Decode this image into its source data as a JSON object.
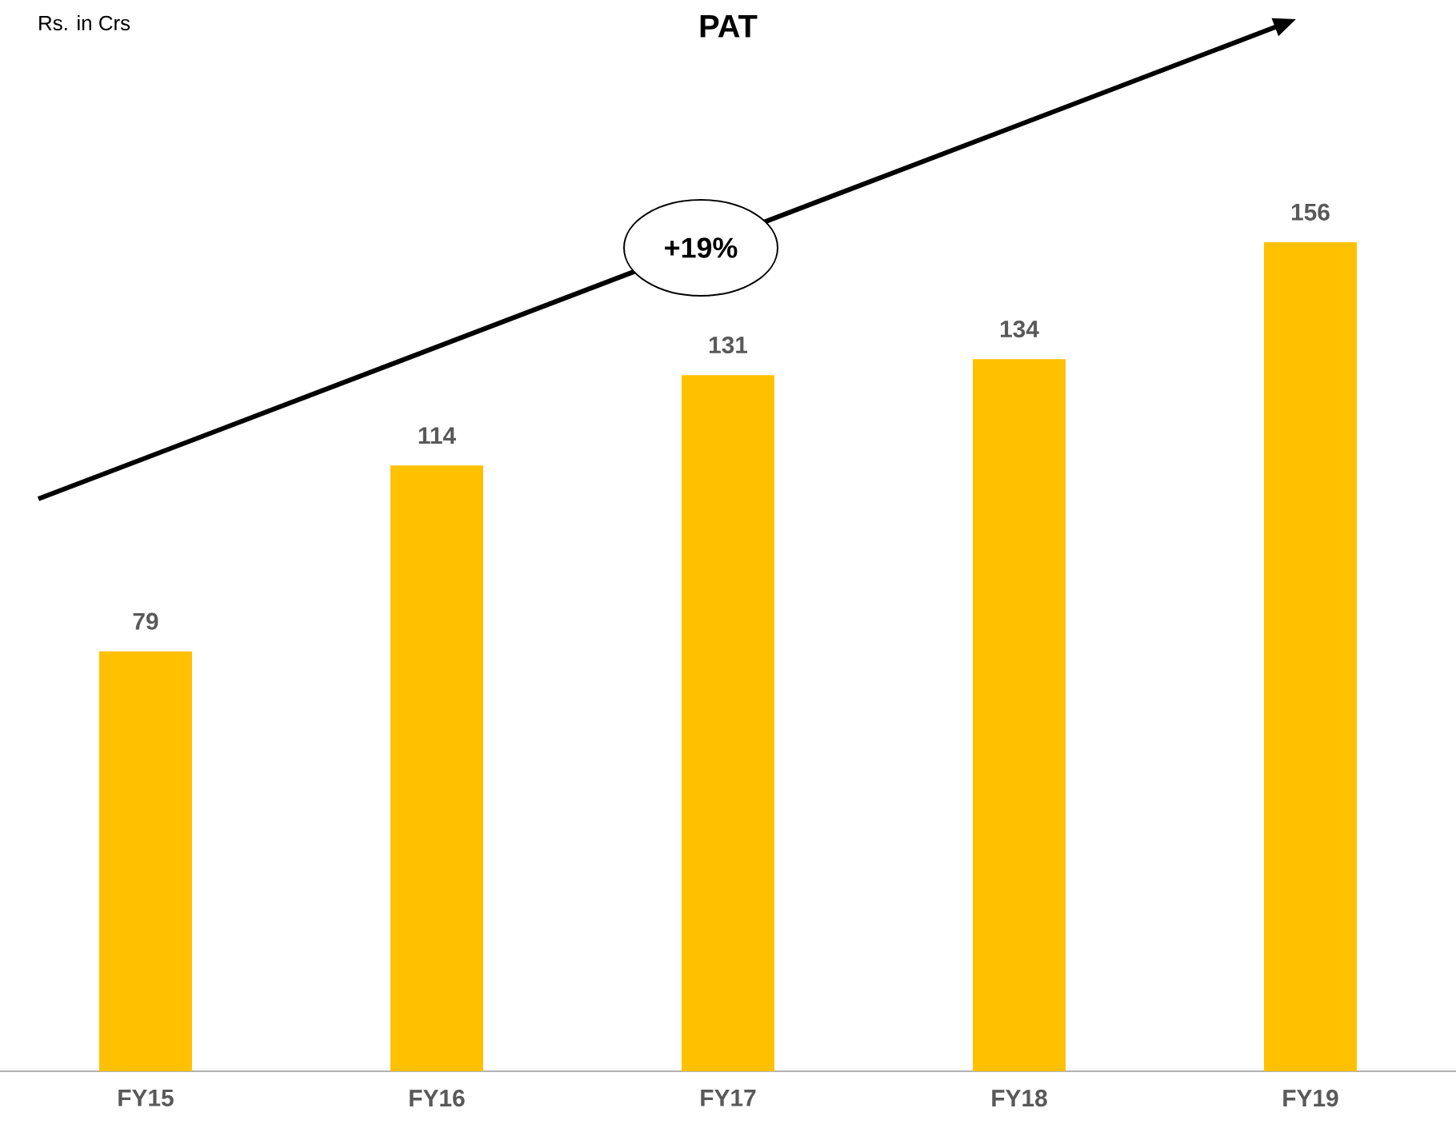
{
  "chart_data": {
    "type": "bar",
    "title": "PAT",
    "subtitle": "Rs. in Crs",
    "categories": [
      "FY15",
      "FY16",
      "FY17",
      "FY18",
      "FY19"
    ],
    "values": [
      79,
      114,
      131,
      134,
      156
    ],
    "color": "#ffc000",
    "data_labels": true,
    "annotations": [
      "+19%"
    ]
  }
}
